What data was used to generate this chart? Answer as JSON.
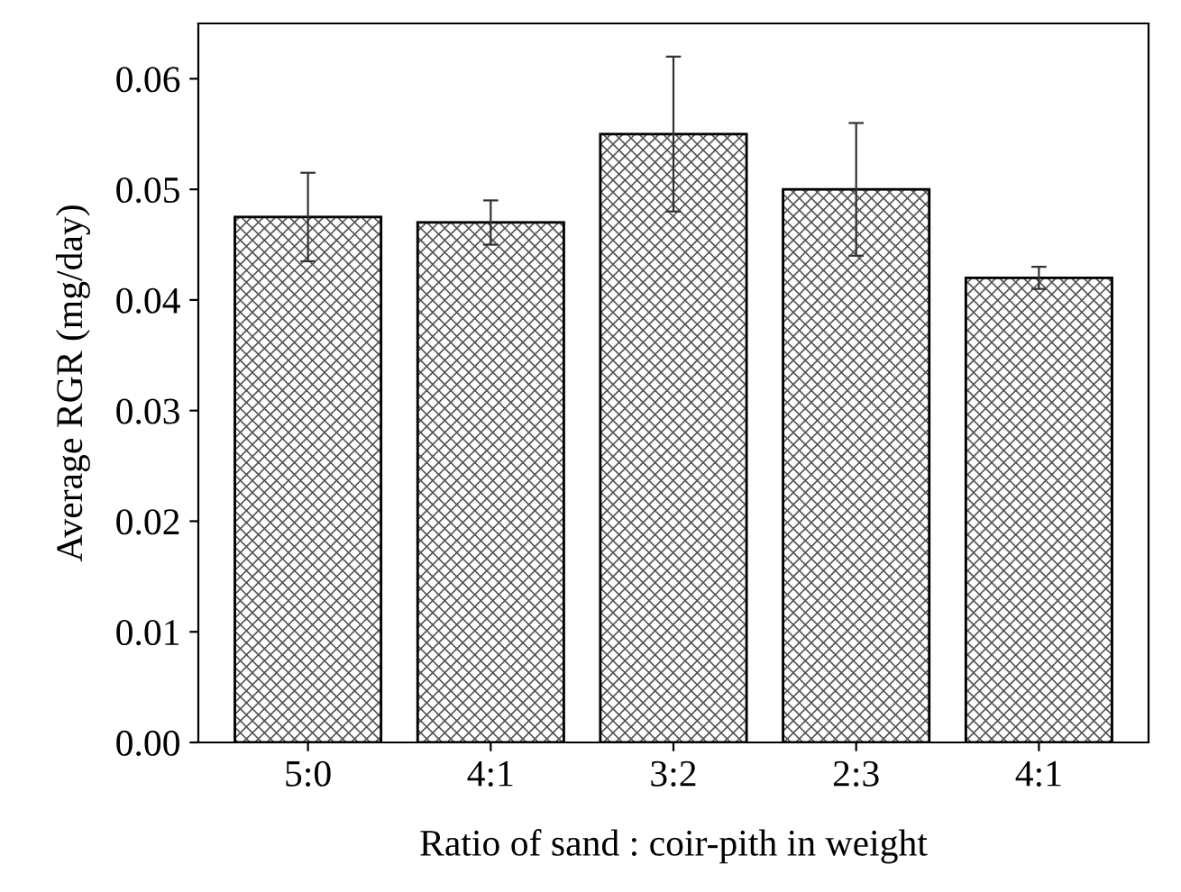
{
  "chart_data": {
    "type": "bar",
    "xlabel": "Ratio of sand : coir-pith in weight",
    "ylabel": "Average RGR (mg/day)",
    "categories": [
      "5:0",
      "4:1",
      "3:2",
      "2:3",
      "4:1"
    ],
    "values": [
      0.0475,
      0.047,
      0.055,
      0.05,
      0.042
    ],
    "errors": [
      0.004,
      0.002,
      0.007,
      0.006,
      0.001
    ],
    "color": "#555555",
    "ylim": [
      0,
      0.065
    ],
    "yticks": [
      {
        "value": 0,
        "label": "0.00"
      },
      {
        "value": 0.01,
        "label": "0.01"
      },
      {
        "value": 0.02,
        "label": "0.02"
      },
      {
        "value": 0.03,
        "label": "0.03"
      },
      {
        "value": 0.04,
        "label": "0.04"
      },
      {
        "value": 0.05,
        "label": "0.05"
      },
      {
        "value": 0.06,
        "label": "0.06"
      }
    ],
    "grid": false,
    "legend": false
  }
}
